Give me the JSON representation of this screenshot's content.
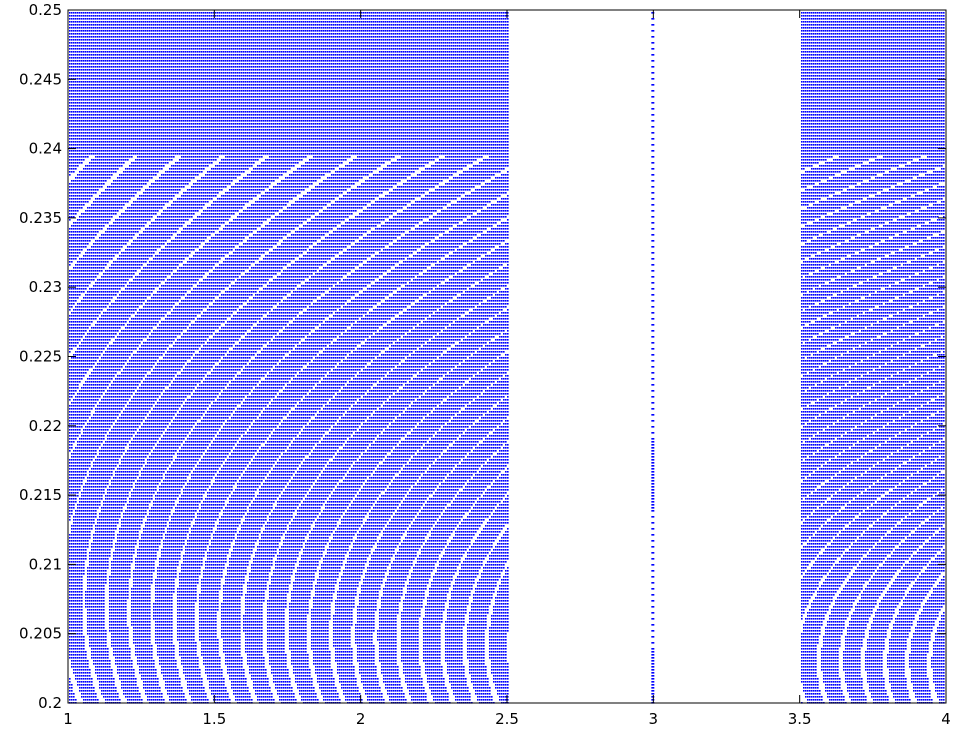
{
  "chart_data": {
    "type": "scatter",
    "title": "",
    "xlabel": "",
    "ylabel": "",
    "xlim": [
      1,
      4
    ],
    "ylim": [
      0.2,
      0.25
    ],
    "grid": false,
    "marker_color": "#0000ff",
    "axis_color": "#000000",
    "background": "#ffffff",
    "x_ticks": [
      1,
      1.5,
      2,
      2.5,
      3,
      3.5,
      4
    ],
    "x_tick_labels": [
      "1",
      "1.5",
      "2",
      "2.5",
      "3",
      "3.5",
      "4"
    ],
    "y_ticks": [
      0.2,
      0.205,
      0.21,
      0.215,
      0.22,
      0.225,
      0.23,
      0.235,
      0.24,
      0.245,
      0.25
    ],
    "y_tick_labels": [
      "0.2",
      "0.205",
      "0.21",
      "0.215",
      "0.22",
      "0.225",
      "0.23",
      "0.235",
      "0.24",
      "0.245",
      "0.25"
    ],
    "filled_x_ranges": [
      [
        1,
        2.5
      ],
      [
        3.5,
        4
      ]
    ],
    "central_sparse_strip_x": 3.0
  }
}
